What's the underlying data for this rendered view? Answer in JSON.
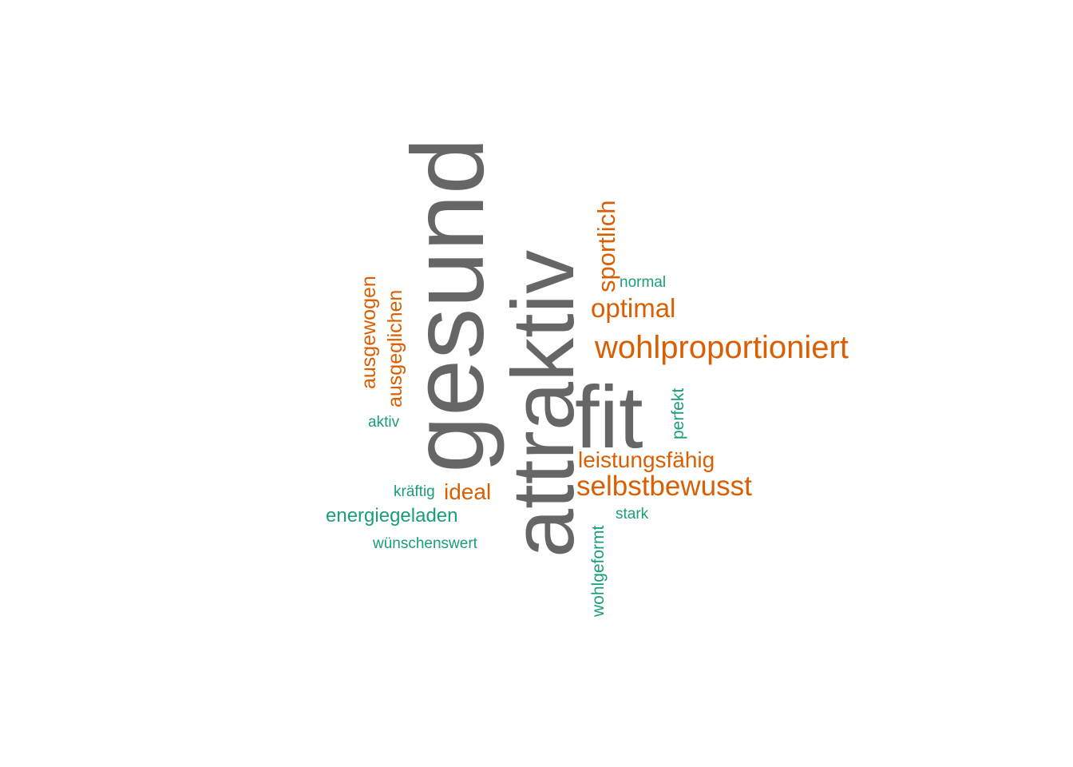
{
  "palette": {
    "gray": "#666666",
    "orange": "#d95f02",
    "teal": "#1b9e77"
  },
  "words": [
    {
      "id": "gesund",
      "text": "gesund",
      "color": "gray",
      "rotated": true
    },
    {
      "id": "attraktiv",
      "text": "attraktiv",
      "color": "gray",
      "rotated": true
    },
    {
      "id": "fit",
      "text": "fit",
      "color": "gray",
      "rotated": false
    },
    {
      "id": "wohlproportioniert",
      "text": "wohlproportioniert",
      "color": "orange",
      "rotated": false
    },
    {
      "id": "selbstbewusst",
      "text": "selbstbewusst",
      "color": "orange",
      "rotated": false
    },
    {
      "id": "leistungsfaehig",
      "text": "leistungsfähig",
      "color": "orange",
      "rotated": false
    },
    {
      "id": "optimal",
      "text": "optimal",
      "color": "orange",
      "rotated": false
    },
    {
      "id": "sportlich",
      "text": "sportlich",
      "color": "orange",
      "rotated": true
    },
    {
      "id": "ausgewogen",
      "text": "ausgewogen",
      "color": "orange",
      "rotated": true
    },
    {
      "id": "ausgeglichen",
      "text": "ausgeglichen",
      "color": "orange",
      "rotated": true
    },
    {
      "id": "ideal",
      "text": "ideal",
      "color": "orange",
      "rotated": false
    },
    {
      "id": "energiegeladen",
      "text": "energiegeladen",
      "color": "teal",
      "rotated": false
    },
    {
      "id": "wohlgeformt",
      "text": "wohlgeformt",
      "color": "teal",
      "rotated": true
    },
    {
      "id": "perfekt",
      "text": "perfekt",
      "color": "teal",
      "rotated": true
    },
    {
      "id": "normal",
      "text": "normal",
      "color": "teal",
      "rotated": false
    },
    {
      "id": "aktiv",
      "text": "aktiv",
      "color": "teal",
      "rotated": false
    },
    {
      "id": "kraeftig",
      "text": "kräftig",
      "color": "teal",
      "rotated": false
    },
    {
      "id": "stark",
      "text": "stark",
      "color": "teal",
      "rotated": false
    },
    {
      "id": "wuenschenswert",
      "text": "wünschenswert",
      "color": "teal",
      "rotated": false
    }
  ]
}
